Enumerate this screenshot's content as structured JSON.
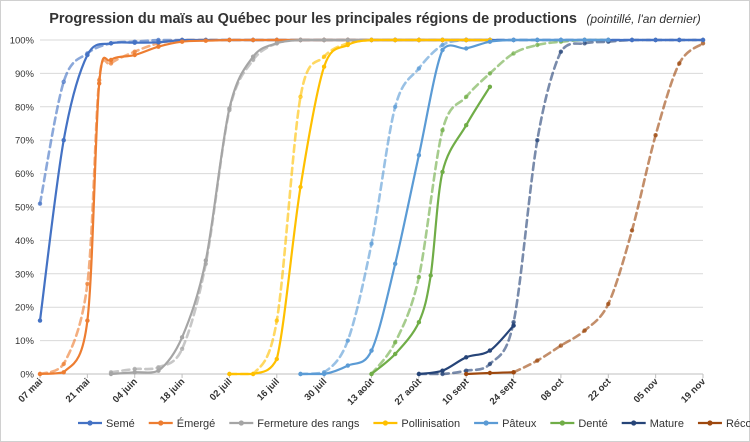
{
  "chart_data": {
    "type": "line",
    "title": "Progression du maïs au Québec pour les principales régions de productions",
    "subtitle": "(pointillé, l'an dernier)",
    "x_tick_labels": [
      "07 mai",
      "21 mai",
      "04 juin",
      "18 juin",
      "02 juil",
      "16 juil",
      "30 juil",
      "13 août",
      "27 août",
      "10 sept",
      "24 sept",
      "08 oct",
      "22 oct",
      "05 nov",
      "19 nov"
    ],
    "y_tick_labels": [
      "0%",
      "10%",
      "20%",
      "30%",
      "40%",
      "50%",
      "60%",
      "70%",
      "80%",
      "90%",
      "100%"
    ],
    "ylim": [
      0,
      100
    ],
    "x_unit": "week index from 07 mai",
    "grid": "horizontal",
    "legend_position": "bottom",
    "series": [
      {
        "name": "Semé",
        "color": "#4472C4",
        "current": [
          [
            0,
            16
          ],
          [
            0.5,
            70
          ],
          [
            1,
            95.5
          ],
          [
            1.5,
            99
          ],
          [
            2,
            99.2
          ],
          [
            2.5,
            99.3
          ],
          [
            3,
            100
          ],
          [
            3.5,
            100
          ],
          [
            4,
            100
          ],
          [
            4.5,
            100
          ],
          [
            5,
            100
          ],
          [
            5.5,
            100
          ],
          [
            6,
            100
          ],
          [
            6.5,
            100
          ],
          [
            7,
            100
          ],
          [
            7.5,
            100
          ],
          [
            8,
            100
          ],
          [
            8.5,
            100
          ],
          [
            9,
            100
          ],
          [
            9.5,
            100
          ],
          [
            10,
            100
          ],
          [
            10.5,
            100
          ],
          [
            11,
            100
          ],
          [
            11.5,
            100
          ],
          [
            12,
            100
          ],
          [
            12.5,
            100
          ],
          [
            13,
            100
          ],
          [
            13.5,
            100
          ],
          [
            14,
            100
          ]
        ],
        "previous": [
          [
            0,
            51
          ],
          [
            0.5,
            87.5
          ],
          [
            1,
            96
          ],
          [
            1.5,
            99
          ],
          [
            2,
            99.5
          ],
          [
            2.5,
            100
          ],
          [
            3,
            100
          ],
          [
            3.5,
            100
          ],
          [
            4,
            100
          ],
          [
            4.5,
            100
          ],
          [
            5,
            100
          ],
          [
            5.5,
            100
          ],
          [
            6,
            100
          ],
          [
            6.5,
            100
          ],
          [
            7,
            100
          ],
          [
            7.5,
            100
          ],
          [
            8,
            100
          ],
          [
            8.5,
            100
          ],
          [
            9,
            100
          ],
          [
            9.5,
            100
          ],
          [
            10,
            100
          ],
          [
            10.5,
            100
          ],
          [
            11,
            100
          ],
          [
            11.5,
            100
          ],
          [
            12,
            100
          ],
          [
            12.5,
            100
          ],
          [
            13,
            100
          ],
          [
            13.5,
            100
          ],
          [
            14,
            100
          ]
        ]
      },
      {
        "name": "Émergé",
        "color": "#ED7D31",
        "current": [
          [
            0,
            0
          ],
          [
            0.5,
            0.5
          ],
          [
            1,
            16
          ],
          [
            1.25,
            87
          ],
          [
            1.5,
            94
          ],
          [
            2,
            95.5
          ],
          [
            2.5,
            98
          ],
          [
            3,
            99.5
          ],
          [
            3.5,
            99.8
          ],
          [
            4,
            100
          ],
          [
            4.5,
            100
          ],
          [
            5,
            100
          ],
          [
            5.5,
            100
          ],
          [
            6,
            100
          ],
          [
            6.5,
            100
          ],
          [
            7,
            100
          ],
          [
            7.5,
            100
          ],
          [
            8,
            100
          ],
          [
            8.5,
            100
          ],
          [
            9,
            100
          ],
          [
            9.5,
            100
          ]
        ],
        "previous": [
          [
            0,
            0
          ],
          [
            0.5,
            3
          ],
          [
            1,
            27
          ],
          [
            1.25,
            88
          ],
          [
            1.5,
            93
          ],
          [
            2,
            96.5
          ],
          [
            2.5,
            99
          ],
          [
            3,
            100
          ],
          [
            3.5,
            100
          ],
          [
            4,
            100
          ],
          [
            4.5,
            100
          ],
          [
            5,
            100
          ],
          [
            5.5,
            100
          ],
          [
            6,
            100
          ],
          [
            6.5,
            100
          ],
          [
            7,
            100
          ],
          [
            7.5,
            100
          ],
          [
            8,
            100
          ],
          [
            8.5,
            100
          ],
          [
            9,
            100
          ],
          [
            9.5,
            100
          ]
        ]
      },
      {
        "name": "Fermeture des rangs",
        "color": "#A5A5A5",
        "current": [
          [
            1.5,
            0
          ],
          [
            2,
            0.5
          ],
          [
            2.5,
            1
          ],
          [
            3,
            11
          ],
          [
            3.5,
            34
          ],
          [
            4,
            79.5
          ],
          [
            4.5,
            95
          ],
          [
            5,
            99
          ],
          [
            5.5,
            100
          ],
          [
            6,
            100
          ],
          [
            6.5,
            100
          ],
          [
            7,
            100
          ],
          [
            7.5,
            100
          ],
          [
            8,
            100
          ],
          [
            8.5,
            100
          ],
          [
            9,
            100
          ],
          [
            9.5,
            100
          ]
        ],
        "previous": [
          [
            1.5,
            0.5
          ],
          [
            2,
            1.5
          ],
          [
            2.5,
            2
          ],
          [
            3,
            7.5
          ],
          [
            3.5,
            33
          ],
          [
            4,
            79
          ],
          [
            4.5,
            94
          ],
          [
            5,
            99
          ],
          [
            5.5,
            100
          ],
          [
            6,
            100
          ],
          [
            6.5,
            100
          ],
          [
            7,
            100
          ],
          [
            7.5,
            100
          ],
          [
            8,
            100
          ],
          [
            8.5,
            100
          ],
          [
            9,
            100
          ],
          [
            9.5,
            100
          ]
        ]
      },
      {
        "name": "Pollinisation",
        "color": "#FFC000",
        "current": [
          [
            4,
            0
          ],
          [
            4.5,
            0
          ],
          [
            5,
            4.5
          ],
          [
            5.5,
            56
          ],
          [
            6,
            92
          ],
          [
            6.5,
            98.5
          ],
          [
            7,
            100
          ],
          [
            7.5,
            100
          ],
          [
            8,
            100
          ],
          [
            8.5,
            100
          ],
          [
            9,
            100
          ],
          [
            9.5,
            100
          ]
        ],
        "previous": [
          [
            4,
            0
          ],
          [
            4.5,
            0
          ],
          [
            5,
            16
          ],
          [
            5.5,
            83
          ],
          [
            6,
            95
          ],
          [
            6.5,
            99
          ],
          [
            7,
            100
          ],
          [
            7.5,
            100
          ],
          [
            8,
            100
          ],
          [
            8.5,
            100
          ],
          [
            9,
            100
          ],
          [
            9.5,
            100
          ]
        ]
      },
      {
        "name": "Pâteux",
        "color": "#5B9BD5",
        "current": [
          [
            5.5,
            0
          ],
          [
            6,
            0
          ],
          [
            6.5,
            2.5
          ],
          [
            7,
            7
          ],
          [
            7.5,
            33
          ],
          [
            8,
            65.5
          ],
          [
            8.5,
            97
          ],
          [
            9,
            97.5
          ],
          [
            9.5,
            99.5
          ],
          [
            10,
            100
          ],
          [
            10.5,
            100
          ],
          [
            11,
            100
          ],
          [
            11.5,
            100
          ],
          [
            12,
            100
          ]
        ],
        "previous": [
          [
            5.5,
            0
          ],
          [
            6,
            0.5
          ],
          [
            6.5,
            10
          ],
          [
            7,
            39
          ],
          [
            7.5,
            80
          ],
          [
            8,
            91.5
          ],
          [
            8.5,
            98.5
          ],
          [
            9,
            100
          ],
          [
            9.5,
            100
          ],
          [
            10,
            100
          ],
          [
            10.5,
            100
          ],
          [
            11,
            100
          ],
          [
            11.5,
            100
          ],
          [
            12,
            100
          ]
        ]
      },
      {
        "name": "Denté",
        "color": "#70AD47",
        "current": [
          [
            7,
            0
          ],
          [
            7.5,
            6
          ],
          [
            8,
            15.5
          ],
          [
            8.25,
            29.5
          ],
          [
            8.5,
            60.5
          ],
          [
            9,
            74.5
          ],
          [
            9.5,
            86
          ]
        ],
        "previous": [
          [
            7,
            0
          ],
          [
            7.5,
            9.5
          ],
          [
            8,
            29
          ],
          [
            8.5,
            73
          ],
          [
            9,
            83
          ],
          [
            9.5,
            90
          ],
          [
            10,
            96
          ],
          [
            10.5,
            98.5
          ],
          [
            11,
            99.5
          ],
          [
            11.5,
            100
          ],
          [
            12,
            100
          ]
        ]
      },
      {
        "name": "Mature",
        "color": "#264478",
        "current": [
          [
            8,
            0
          ],
          [
            8.5,
            1
          ],
          [
            9,
            5
          ],
          [
            9.5,
            7
          ],
          [
            10,
            14.5
          ]
        ],
        "previous": [
          [
            8,
            0
          ],
          [
            8.5,
            0
          ],
          [
            9,
            1
          ],
          [
            9.5,
            3
          ],
          [
            10,
            15.5
          ],
          [
            10.5,
            70
          ],
          [
            11,
            96.5
          ],
          [
            11.5,
            99
          ],
          [
            12,
            99.5
          ],
          [
            12.5,
            100
          ],
          [
            13,
            100
          ],
          [
            13.5,
            100
          ],
          [
            14,
            100
          ]
        ]
      },
      {
        "name": "Récolte",
        "color": "#9E480E",
        "current": [
          [
            9,
            0
          ],
          [
            9.5,
            0.3
          ],
          [
            10,
            0.5
          ]
        ],
        "previous": [
          [
            10,
            0.5
          ],
          [
            10.5,
            4
          ],
          [
            11,
            8.5
          ],
          [
            11.5,
            13
          ],
          [
            12,
            21
          ],
          [
            12.5,
            43
          ],
          [
            13,
            71.5
          ],
          [
            13.5,
            93
          ],
          [
            14,
            99
          ]
        ]
      }
    ]
  }
}
